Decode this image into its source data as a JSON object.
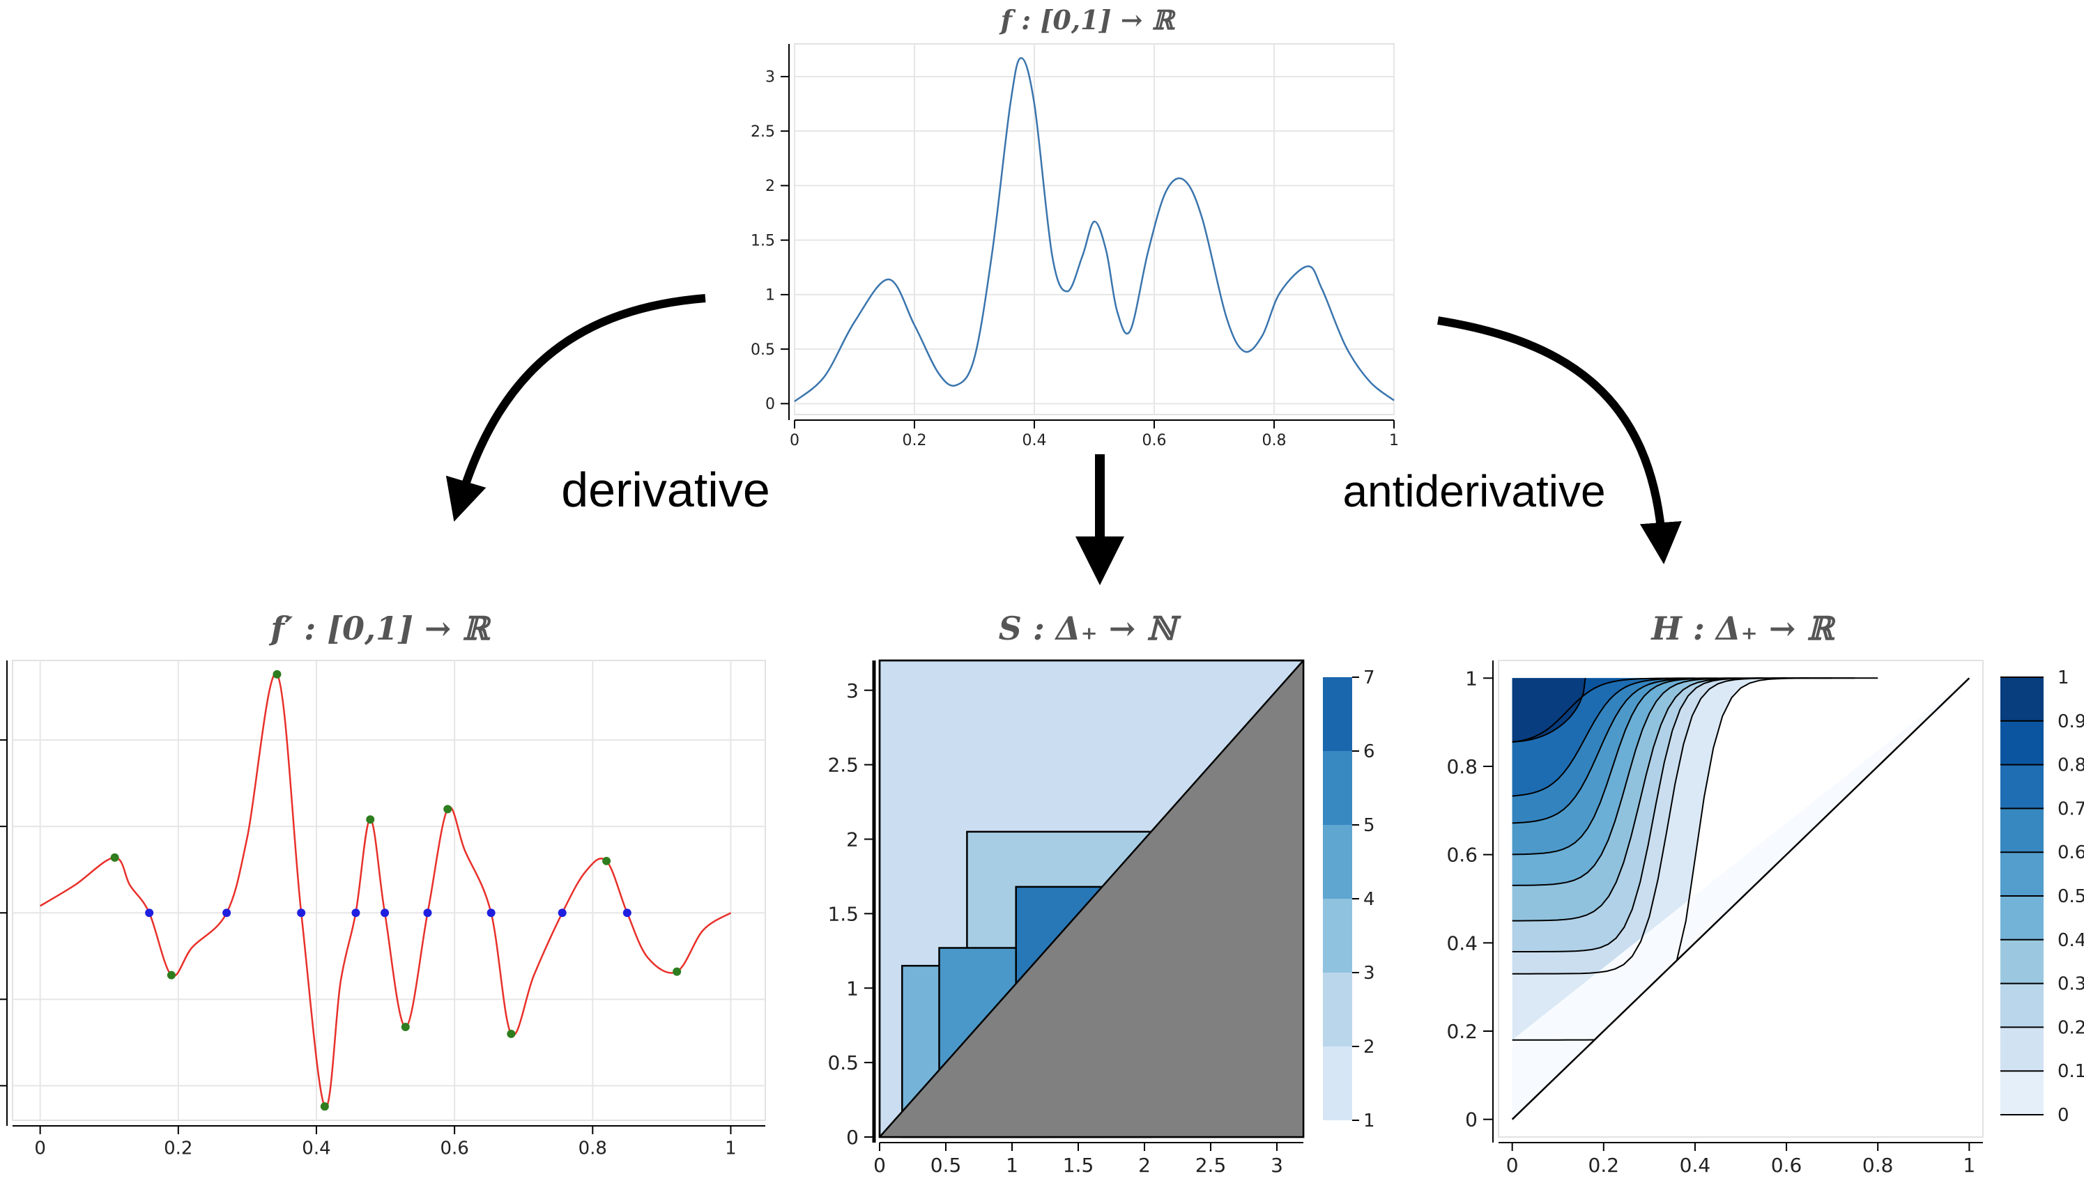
{
  "titles": {
    "top": "f : [0,1] → ℝ",
    "left": "f′ : [0,1] → ℝ",
    "middle": "S : Δ₊ → ℕ",
    "right": "H : Δ₊ → ℝ"
  },
  "labels": {
    "derivative": "derivative",
    "antiderivative": "antiderivative"
  },
  "colors": {
    "f_line": "#3a75ad",
    "fprime_line": "#e8302a",
    "critical_points": "#1f1fe0",
    "extrema_points": "#2e7d1e",
    "diagonal_fill": "#808080"
  },
  "chart_data": [
    {
      "type": "line",
      "name": "f",
      "x_ticks": [
        "0",
        "0.2",
        "0.4",
        "0.6",
        "0.8",
        "1"
      ],
      "y_ticks": [
        "0",
        "0.5",
        "1",
        "1.5",
        "2",
        "2.5",
        "3"
      ],
      "xlim": [
        0,
        1
      ],
      "ylim": [
        -0.1,
        3.3
      ],
      "grid": true,
      "x": [
        0,
        0.05,
        0.1,
        0.157,
        0.2,
        0.24,
        0.27,
        0.3,
        0.33,
        0.36,
        0.378,
        0.4,
        0.43,
        0.455,
        0.48,
        0.5,
        0.52,
        0.538,
        0.56,
        0.59,
        0.62,
        0.65,
        0.68,
        0.72,
        0.75,
        0.78,
        0.81,
        0.856,
        0.88,
        0.92,
        0.96,
        1
      ],
      "y": [
        0.02,
        0.25,
        0.75,
        1.14,
        0.72,
        0.28,
        0.17,
        0.42,
        1.4,
        2.75,
        3.17,
        2.75,
        1.35,
        1.03,
        1.35,
        1.67,
        1.4,
        0.85,
        0.67,
        1.4,
        1.95,
        2.05,
        1.7,
        0.8,
        0.48,
        0.62,
        1.02,
        1.26,
        1.05,
        0.52,
        0.2,
        0.03
      ]
    },
    {
      "type": "line",
      "name": "f′",
      "x_ticks": [
        "0",
        "0.2",
        "0.4",
        "0.6",
        "0.8",
        "1"
      ],
      "xlim": [
        -0.04,
        1.05
      ],
      "ylim": [
        -60,
        73
      ],
      "grid": true,
      "x": [
        0,
        0.05,
        0.108,
        0.13,
        0.158,
        0.19,
        0.22,
        0.27,
        0.3,
        0.343,
        0.378,
        0.412,
        0.435,
        0.457,
        0.478,
        0.499,
        0.529,
        0.561,
        0.59,
        0.615,
        0.653,
        0.682,
        0.715,
        0.756,
        0.79,
        0.82,
        0.85,
        0.88,
        0.922,
        0.96,
        1
      ],
      "y": [
        2,
        8,
        16,
        8,
        0,
        -18,
        -10,
        0,
        22,
        69,
        0,
        -56,
        -20,
        0,
        27,
        0,
        -33,
        0,
        30,
        18,
        0,
        -35,
        -18,
        0,
        12,
        15,
        0,
        -13,
        -17,
        -5,
        0
      ],
      "critical_x": [
        0.158,
        0.27,
        0.378,
        0.457,
        0.499,
        0.561,
        0.653,
        0.756,
        0.85
      ],
      "extrema": [
        [
          0.108,
          16
        ],
        [
          0.19,
          -18
        ],
        [
          0.343,
          69
        ],
        [
          0.412,
          -56
        ],
        [
          0.478,
          27
        ],
        [
          0.529,
          -33
        ],
        [
          0.59,
          30
        ],
        [
          0.682,
          -35
        ],
        [
          0.82,
          15
        ],
        [
          0.922,
          -17
        ]
      ]
    },
    {
      "type": "heatmap",
      "name": "S",
      "x_ticks": [
        "0",
        "0.5",
        "1",
        "1.5",
        "2",
        "2.5",
        "3"
      ],
      "y_ticks": [
        "0",
        "0.5",
        "1",
        "1.5",
        "2",
        "2.5",
        "3"
      ],
      "xlim": [
        0,
        3.2
      ],
      "ylim": [
        0,
        3.2
      ],
      "colorbar_ticks": [
        "1",
        "2",
        "3",
        "4",
        "5",
        "6",
        "7"
      ],
      "colorbar_range": [
        1,
        7
      ],
      "blocks": [
        {
          "x0": 0,
          "y0": 0,
          "x1": 3.2,
          "y1": 3.2,
          "value": 2
        },
        {
          "x0": 0.66,
          "y0": 0,
          "x1": 2.05,
          "y1": 2.05,
          "value": 3
        },
        {
          "x0": 0.17,
          "y0": 0,
          "x1": 1.15,
          "y1": 1.15,
          "value": 4
        },
        {
          "x0": 0.45,
          "y0": 0,
          "x1": 1.27,
          "y1": 1.27,
          "value": 5
        },
        {
          "x0": 1.03,
          "y0": 0,
          "x1": 1.68,
          "y1": 1.68,
          "value": 6
        }
      ]
    },
    {
      "type": "heatmap",
      "name": "H",
      "x_ticks": [
        "0",
        "0.2",
        "0.4",
        "0.6",
        "0.8",
        "1"
      ],
      "y_ticks": [
        "0",
        "0.2",
        "0.4",
        "0.6",
        "0.8",
        "1"
      ],
      "xlim": [
        -0.03,
        1.03
      ],
      "ylim": [
        -0.04,
        1.04
      ],
      "colorbar_ticks": [
        "0",
        "0.1",
        "0.2",
        "0.3",
        "0.4",
        "0.5",
        "0.6",
        "0.7",
        "0.8",
        "0.9",
        "1"
      ],
      "colorbar_range": [
        0,
        1
      ],
      "levels": [
        0.1,
        0.2,
        0.3,
        0.4,
        0.5,
        0.6,
        0.7,
        0.8,
        0.9
      ]
    }
  ]
}
